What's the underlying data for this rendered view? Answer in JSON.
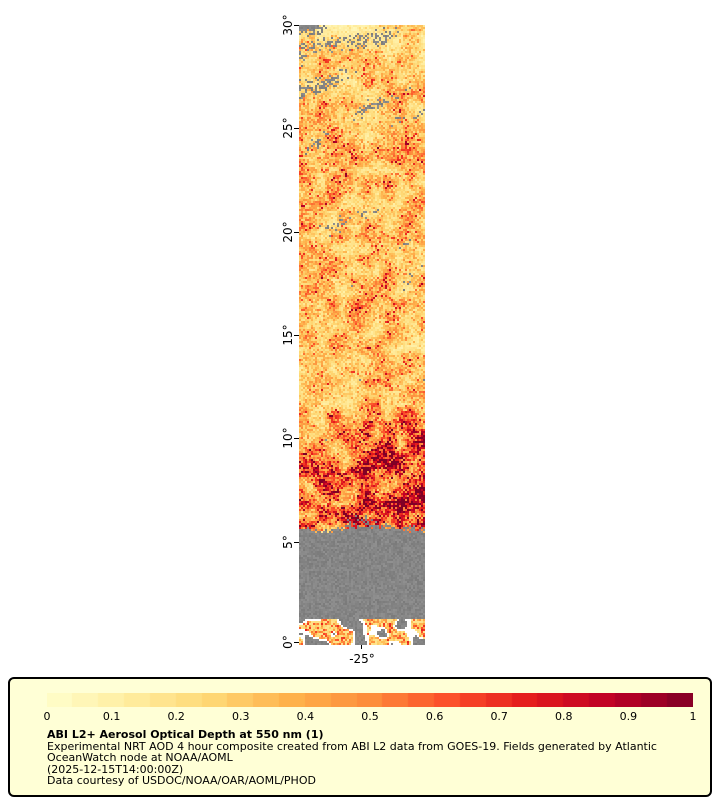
{
  "page": {
    "background": "#FFFFFF"
  },
  "map": {
    "y_axis_tick_labels": [
      "30°",
      "25°",
      "20°",
      "15°",
      "10°",
      "5°",
      "0°"
    ],
    "x_axis_tick_labels": [
      "-25°"
    ]
  },
  "legend": {
    "box_background": "#FFFFD6",
    "title": "ABI L2+ Aerosol Optical Depth at 550 nm (1)",
    "caption_lines": [
      "Experimental NRT AOD 4 hour composite created from ABI L2 data from GOES-19. Fields generated by Atlantic",
      "OceanWatch node at NOAA/AOML",
      "(2025-12-15T14:00:00Z)",
      "Data courtesy of USDOC/NOAA/OAR/AOML/PHOD"
    ],
    "colorbar_tick_labels": [
      "0",
      "0.1",
      "0.2",
      "0.3",
      "0.4",
      "0.5",
      "0.6",
      "0.7",
      "0.8",
      "0.9",
      "1"
    ]
  },
  "chart_data": {
    "type": "heatmap",
    "title": "ABI L2+ Aerosol Optical Depth at 550 nm (1)",
    "subtitle": "Experimental NRT AOD 4 hour composite created from ABI L2 data from GOES-19. Fields generated by Atlantic OceanWatch node at NOAA/AOML",
    "timestamp": "(2025-12-15T14:00:00Z)",
    "credit": "Data courtesy of USDOC/NOAA/OAR/AOML/PHOD",
    "x_axis": {
      "tick_labels": [
        "-25°"
      ]
    },
    "y_axis": {
      "tick_labels": [
        "0°",
        "5°",
        "10°",
        "15°",
        "20°",
        "25°",
        "30°"
      ],
      "range": [
        0,
        30
      ],
      "unit": "degrees latitude"
    },
    "colorbar": {
      "min": 0,
      "max": 1,
      "ticks": [
        0,
        0.1,
        0.2,
        0.3,
        0.4,
        0.5,
        0.6,
        0.7,
        0.8,
        0.9,
        1
      ],
      "segments": 25,
      "colormap_stops": [
        [
          0,
          "#FFFFCC"
        ],
        [
          0.125,
          "#FFEDA0"
        ],
        [
          0.25,
          "#FED976"
        ],
        [
          0.375,
          "#FEB24C"
        ],
        [
          0.5,
          "#FD8D3C"
        ],
        [
          0.625,
          "#FC4E2A"
        ],
        [
          0.75,
          "#E31A1C"
        ],
        [
          0.875,
          "#BD0026"
        ],
        [
          1,
          "#800026"
        ]
      ]
    },
    "no_data_color": "#8A8A8A",
    "lat_profile": [
      {
        "lat": 0.0,
        "aod": 0.3,
        "missing": 0.58
      },
      {
        "lat": 0.6,
        "aod": 0.32,
        "missing": 0.55
      },
      {
        "lat": 1.3,
        "aod": 0.3,
        "missing": 0.9
      },
      {
        "lat": 2.5,
        "aod": 0.3,
        "missing": 0.97
      },
      {
        "lat": 4.6,
        "aod": 0.34,
        "missing": 0.97
      },
      {
        "lat": 5.3,
        "aod": 0.42,
        "missing": 0.85
      },
      {
        "lat": 5.8,
        "aod": 0.5,
        "missing": 0.3
      },
      {
        "lat": 6.5,
        "aod": 0.58,
        "missing": 0.12
      },
      {
        "lat": 7.5,
        "aod": 0.62,
        "missing": 0.09
      },
      {
        "lat": 8.5,
        "aod": 0.55,
        "missing": 0.08
      },
      {
        "lat": 9.5,
        "aod": 0.46,
        "missing": 0.08
      },
      {
        "lat": 10.5,
        "aod": 0.4,
        "missing": 0.07
      },
      {
        "lat": 12.0,
        "aod": 0.32,
        "missing": 0.06
      },
      {
        "lat": 13.5,
        "aod": 0.27,
        "missing": 0.07
      },
      {
        "lat": 15.0,
        "aod": 0.28,
        "missing": 0.09
      },
      {
        "lat": 16.5,
        "aod": 0.31,
        "missing": 0.1
      },
      {
        "lat": 18.0,
        "aod": 0.28,
        "missing": 0.12
      },
      {
        "lat": 19.5,
        "aod": 0.26,
        "missing": 0.13
      },
      {
        "lat": 21.0,
        "aod": 0.28,
        "missing": 0.15
      },
      {
        "lat": 22.5,
        "aod": 0.31,
        "missing": 0.17
      },
      {
        "lat": 24.0,
        "aod": 0.33,
        "missing": 0.2
      },
      {
        "lat": 25.5,
        "aod": 0.3,
        "missing": 0.23
      },
      {
        "lat": 27.0,
        "aod": 0.26,
        "missing": 0.27
      },
      {
        "lat": 28.5,
        "aod": 0.23,
        "missing": 0.3
      },
      {
        "lat": 30.0,
        "aod": 0.2,
        "missing": 0.32
      }
    ]
  }
}
